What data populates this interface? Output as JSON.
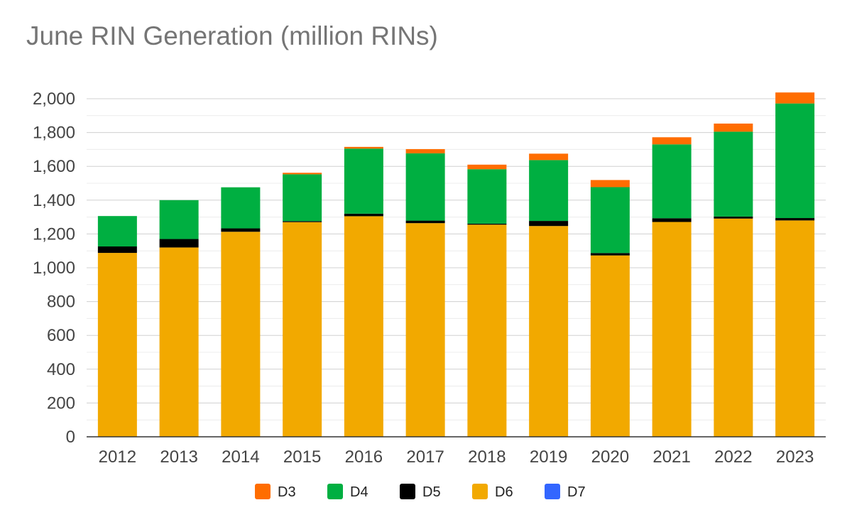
{
  "chart_data": {
    "type": "bar",
    "stacked": true,
    "title": "June RIN Generation (million RINs)",
    "xlabel": "",
    "ylabel": "",
    "ylim": [
      0,
      2000
    ],
    "yticks": [
      "0",
      "200",
      "400",
      "600",
      "800",
      "1,000",
      "1,200",
      "1,400",
      "1,600",
      "1,800",
      "2,000"
    ],
    "grid": true,
    "legend_position": "bottom",
    "categories": [
      "2012",
      "2013",
      "2014",
      "2015",
      "2016",
      "2017",
      "2018",
      "2019",
      "2020",
      "2021",
      "2022",
      "2023"
    ],
    "series": [
      {
        "name": "D6",
        "color": "#F2A900",
        "values": [
          1088,
          1120,
          1213,
          1270,
          1305,
          1264,
          1255,
          1247,
          1073,
          1271,
          1291,
          1280
        ]
      },
      {
        "name": "D5",
        "color": "#000000",
        "values": [
          38,
          50,
          20,
          6,
          15,
          15,
          6,
          30,
          14,
          22,
          12,
          14
        ]
      },
      {
        "name": "D4",
        "color": "#00AF41",
        "values": [
          180,
          230,
          243,
          277,
          385,
          398,
          322,
          360,
          390,
          437,
          502,
          678
        ]
      },
      {
        "name": "D3",
        "color": "#FF6D00",
        "values": [
          0,
          0,
          0,
          9,
          10,
          25,
          27,
          38,
          42,
          42,
          48,
          65
        ]
      },
      {
        "name": "D7",
        "color": "#3366FF",
        "values": [
          0,
          0,
          0,
          0,
          0,
          0,
          0,
          0,
          0,
          0,
          0,
          0
        ]
      }
    ],
    "legend_order": [
      "D3",
      "D4",
      "D5",
      "D6",
      "D7"
    ]
  }
}
